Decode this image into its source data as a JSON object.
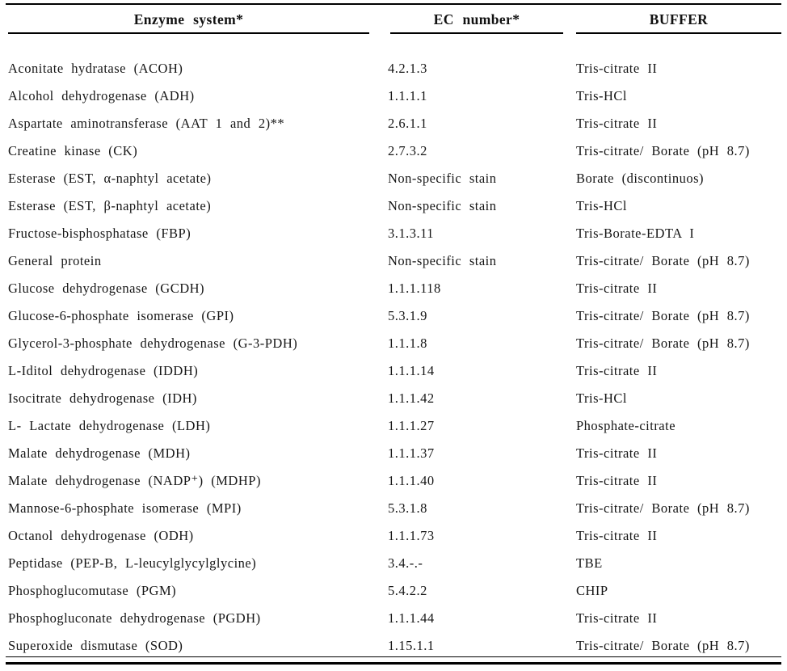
{
  "table": {
    "columns": [
      {
        "label": "Enzyme system*"
      },
      {
        "label": "EC number*"
      },
      {
        "label": "BUFFER"
      }
    ],
    "rows": [
      [
        "Aconitate hydratase (ACOH)",
        "4.2.1.3",
        "Tris-citrate II"
      ],
      [
        "Alcohol dehydrogenase (ADH)",
        "1.1.1.1",
        "Tris-HCl"
      ],
      [
        "Aspartate aminotransferase (AAT 1 and 2)**",
        "2.6.1.1",
        "Tris-citrate II"
      ],
      [
        "Creatine kinase (CK)",
        "2.7.3.2",
        "Tris-citrate/ Borate (pH 8.7)"
      ],
      [
        "Esterase (EST, α-naphtyl acetate)",
        "Non-specific stain",
        "Borate (discontinuos)"
      ],
      [
        "Esterase (EST, β-naphtyl acetate)",
        "Non-specific stain",
        "Tris-HCl"
      ],
      [
        "Fructose-bisphosphatase (FBP)",
        "3.1.3.11",
        "Tris-Borate-EDTA I"
      ],
      [
        "General protein",
        "Non-specific stain",
        "Tris-citrate/ Borate (pH 8.7)"
      ],
      [
        "Glucose dehydrogenase (GCDH)",
        "1.1.1.118",
        "Tris-citrate II"
      ],
      [
        "Glucose-6-phosphate isomerase (GPI)",
        "5.3.1.9",
        "Tris-citrate/ Borate (pH 8.7)"
      ],
      [
        "Glycerol-3-phosphate dehydrogenase (G-3-PDH)",
        "1.1.1.8",
        "Tris-citrate/ Borate (pH 8.7)"
      ],
      [
        "L-Iditol dehydrogenase (IDDH)",
        "1.1.1.14",
        "Tris-citrate II"
      ],
      [
        "Isocitrate dehydrogenase (IDH)",
        "1.1.1.42",
        "Tris-HCl"
      ],
      [
        "L- Lactate dehydrogenase (LDH)",
        "1.1.1.27",
        "Phosphate-citrate"
      ],
      [
        "Malate dehydrogenase (MDH)",
        "1.1.1.37",
        "Tris-citrate II"
      ],
      [
        "Malate dehydrogenase (NADP⁺) (MDHP)",
        "1.1.1.40",
        "Tris-citrate II"
      ],
      [
        "Mannose-6-phosphate isomerase (MPI)",
        "5.3.1.8",
        "Tris-citrate/ Borate (pH 8.7)"
      ],
      [
        "Octanol dehydrogenase (ODH)",
        "1.1.1.73",
        "Tris-citrate II"
      ],
      [
        "Peptidase (PEP-B, L-leucylglycylglycine)",
        "3.4.-.-",
        "TBE"
      ],
      [
        "Phosphoglucomutase (PGM)",
        "5.4.2.2",
        "CHIP"
      ],
      [
        "Phosphogluconate dehydrogenase (PGDH)",
        "1.1.1.44",
        "Tris-citrate II"
      ],
      [
        "Superoxide dismutase (SOD)",
        "1.15.1.1",
        "Tris-citrate/ Borate (pH 8.7)"
      ]
    ],
    "cell_names": [
      "enzyme-system-cell",
      "ec-number-cell",
      "buffer-cell"
    ]
  },
  "colors": {
    "text": "#161616",
    "rule": "#000000",
    "background": "#ffffff"
  }
}
